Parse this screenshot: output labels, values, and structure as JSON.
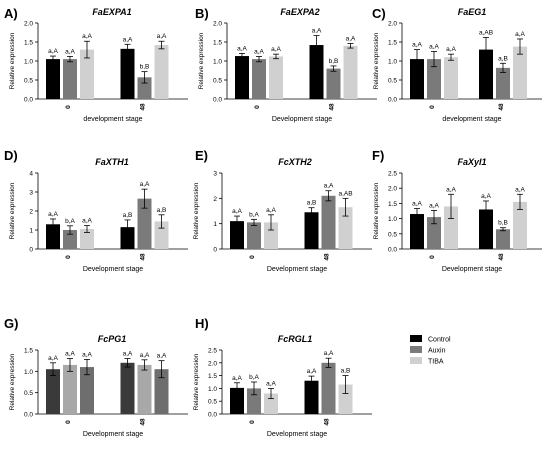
{
  "chart_data": [
    {
      "type": "bar",
      "panel_label": "A)",
      "title": "FaEXPA1",
      "ylabel": "Relative expression",
      "xlabel": "development stage",
      "ylim": [
        0,
        2.0
      ],
      "yticks": [
        "0.0",
        "0.5",
        "1.0",
        "1.5",
        "2.0"
      ],
      "categories": [
        "0",
        "48"
      ],
      "series": [
        {
          "values": [
            1.05,
            1.32
          ],
          "errors": [
            0.08,
            0.12
          ],
          "labels": [
            "a,A",
            "a,A"
          ]
        },
        {
          "values": [
            1.05,
            0.57
          ],
          "errors": [
            0.07,
            0.15
          ],
          "labels": [
            "a,A",
            "b,B"
          ]
        },
        {
          "values": [
            1.3,
            1.42
          ],
          "errors": [
            0.22,
            0.1
          ],
          "labels": [
            "a,A",
            "a,A"
          ]
        }
      ]
    },
    {
      "type": "bar",
      "panel_label": "B)",
      "title": "FaEXPA2",
      "ylabel": "Relative expression",
      "xlabel": "Development stage",
      "ylim": [
        0,
        2.0
      ],
      "yticks": [
        "0.0",
        "0.5",
        "1.0",
        "1.5",
        "2.0"
      ],
      "categories": [
        "0",
        "48"
      ],
      "series": [
        {
          "values": [
            1.13,
            1.42
          ],
          "errors": [
            0.07,
            0.25
          ],
          "labels": [
            "a,A",
            "a,A"
          ]
        },
        {
          "values": [
            1.05,
            0.8
          ],
          "errors": [
            0.07,
            0.07
          ],
          "labels": [
            "a,A",
            "b,B"
          ]
        },
        {
          "values": [
            1.12,
            1.4
          ],
          "errors": [
            0.06,
            0.06
          ],
          "labels": [
            "a,A",
            "a,A"
          ]
        }
      ]
    },
    {
      "type": "bar",
      "panel_label": "C)",
      "title": "FaEG1",
      "ylabel": "Relative expression",
      "xlabel": "development stage",
      "ylim": [
        0,
        2.0
      ],
      "yticks": [
        "0.0",
        "0.5",
        "1.0",
        "1.5",
        "2.0"
      ],
      "categories": [
        "0",
        "48"
      ],
      "series": [
        {
          "values": [
            1.05,
            1.3
          ],
          "errors": [
            0.25,
            0.32
          ],
          "labels": [
            "a,A",
            "a,AB"
          ]
        },
        {
          "values": [
            1.05,
            0.82
          ],
          "errors": [
            0.2,
            0.12
          ],
          "labels": [
            "a,A",
            "a,B"
          ]
        },
        {
          "values": [
            1.1,
            1.38
          ],
          "errors": [
            0.08,
            0.2
          ],
          "labels": [
            "a,A",
            "a,A"
          ]
        }
      ]
    },
    {
      "type": "bar",
      "panel_label": "D)",
      "title": "FaXTH1",
      "ylabel": "Relative expression",
      "xlabel": "Development stage",
      "ylim": [
        0,
        4
      ],
      "yticks": [
        "0",
        "1",
        "2",
        "3",
        "4"
      ],
      "categories": [
        "0",
        "48"
      ],
      "series": [
        {
          "values": [
            1.3,
            1.15
          ],
          "errors": [
            0.28,
            0.38
          ],
          "labels": [
            "a,A",
            "a,B"
          ]
        },
        {
          "values": [
            1.0,
            2.65
          ],
          "errors": [
            0.22,
            0.5
          ],
          "labels": [
            "b,A",
            "a,A"
          ]
        },
        {
          "values": [
            1.05,
            1.45
          ],
          "errors": [
            0.18,
            0.35
          ],
          "labels": [
            "a,A",
            "a,B"
          ]
        }
      ]
    },
    {
      "type": "bar",
      "panel_label": "E)",
      "title": "FcXTH2",
      "ylabel": "Relative expression",
      "xlabel": "Development stage",
      "ylim": [
        0,
        3
      ],
      "yticks": [
        "0",
        "1",
        "2",
        "3"
      ],
      "categories": [
        "0",
        "48"
      ],
      "series": [
        {
          "values": [
            1.1,
            1.45
          ],
          "errors": [
            0.2,
            0.18
          ],
          "labels": [
            "a,A",
            "a,B"
          ]
        },
        {
          "values": [
            1.05,
            2.1
          ],
          "errors": [
            0.12,
            0.2
          ],
          "labels": [
            "b,A",
            "a,A"
          ]
        },
        {
          "values": [
            1.05,
            1.65
          ],
          "errors": [
            0.3,
            0.35
          ],
          "labels": [
            "a,A",
            "a,AB"
          ]
        }
      ]
    },
    {
      "type": "bar",
      "panel_label": "F)",
      "title": "FaXyl1",
      "ylabel": "Relative expression",
      "xlabel": "Development stage",
      "ylim": [
        0,
        2.5
      ],
      "yticks": [
        "0.0",
        "0.5",
        "1.0",
        "1.5",
        "2.0",
        "2.5"
      ],
      "categories": [
        "0",
        "48"
      ],
      "series": [
        {
          "values": [
            1.15,
            1.3
          ],
          "errors": [
            0.18,
            0.28
          ],
          "labels": [
            "a,A",
            "a,A"
          ]
        },
        {
          "values": [
            1.05,
            0.65
          ],
          "errors": [
            0.22,
            0.05
          ],
          "labels": [
            "a,A",
            "b,B"
          ]
        },
        {
          "values": [
            1.4,
            1.55
          ],
          "errors": [
            0.4,
            0.25
          ],
          "labels": [
            "a,A",
            "a,A"
          ]
        }
      ]
    },
    {
      "type": "bar",
      "panel_label": "G)",
      "title": "FcPG1",
      "ylabel": "Relative expression",
      "xlabel": "Development stage",
      "ylim": [
        0,
        1.5
      ],
      "yticks": [
        "0.0",
        "0.5",
        "1.0",
        "1.5"
      ],
      "categories": [
        "0",
        "48"
      ],
      "series": [
        {
          "values": [
            1.05,
            1.2
          ],
          "errors": [
            0.15,
            0.1
          ],
          "labels": [
            "a,A",
            "a,A"
          ]
        },
        {
          "values": [
            1.15,
            1.15
          ],
          "errors": [
            0.15,
            0.12
          ],
          "labels": [
            "a,A",
            "a,A"
          ]
        },
        {
          "values": [
            1.1,
            1.05
          ],
          "errors": [
            0.18,
            0.2
          ],
          "labels": [
            "a,A",
            "a,A"
          ]
        }
      ]
    },
    {
      "type": "bar",
      "panel_label": "H)",
      "title": "FcRGL1",
      "ylabel": "Relative expression",
      "xlabel": "Development stage",
      "ylim": [
        0,
        2.5
      ],
      "yticks": [
        "0.0",
        "0.5",
        "1.0",
        "1.5",
        "2.0",
        "2.5"
      ],
      "categories": [
        "0",
        "48"
      ],
      "series": [
        {
          "values": [
            1.02,
            1.3
          ],
          "errors": [
            0.2,
            0.18
          ],
          "labels": [
            "a,A",
            "a,A"
          ]
        },
        {
          "values": [
            1.0,
            2.0
          ],
          "errors": [
            0.25,
            0.18
          ],
          "labels": [
            "b,A",
            "a,A"
          ]
        },
        {
          "values": [
            0.8,
            1.15
          ],
          "errors": [
            0.2,
            0.35
          ],
          "labels": [
            "a,A",
            "a,B"
          ]
        }
      ]
    }
  ],
  "legend": {
    "placement": "right",
    "items": [
      {
        "label": "Control",
        "color": "#000000"
      },
      {
        "label": "Auxin",
        "color": "#7a7a7a"
      },
      {
        "label": "TIBA",
        "color": "#d0d0d0"
      }
    ]
  },
  "colors": {
    "series": [
      "#000000",
      "#7a7a7a",
      "#d0d0d0"
    ],
    "series_per_panel_G": [
      "#3a3a3a",
      "#a8a8a8",
      "#6e6e6e"
    ]
  }
}
